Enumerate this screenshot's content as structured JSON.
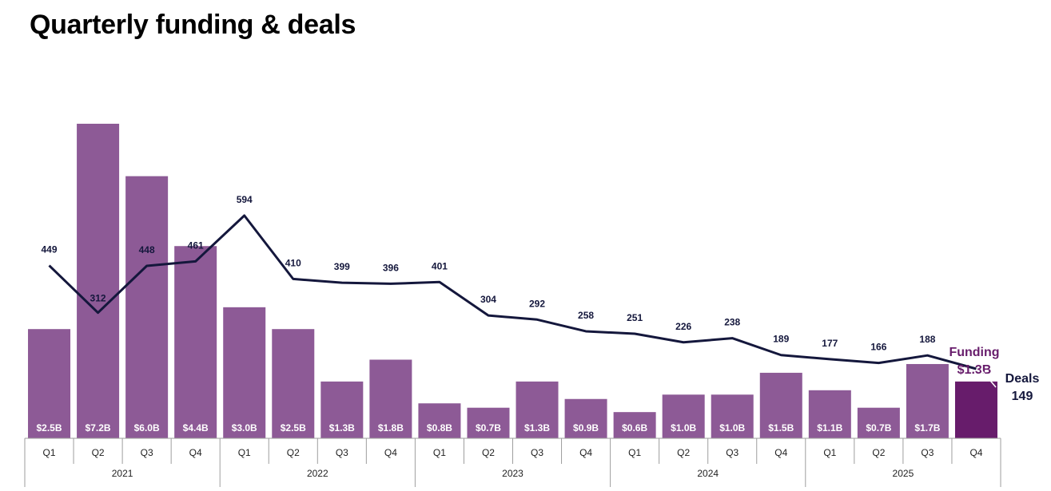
{
  "title": "Quarterly funding & deals",
  "colors": {
    "bar": "#8d5a96",
    "bar_highlight": "#671c6b",
    "line": "#14173c",
    "axis": "#9e9e9e",
    "funding_text": "#671c6b",
    "deals_text": "#14173c"
  },
  "chart_data": {
    "type": "bar",
    "title": "Quarterly funding & deals",
    "quarters": [
      "Q1",
      "Q2",
      "Q3",
      "Q4",
      "Q1",
      "Q2",
      "Q3",
      "Q4",
      "Q1",
      "Q2",
      "Q3",
      "Q4",
      "Q1",
      "Q2",
      "Q3",
      "Q4",
      "Q1",
      "Q2",
      "Q3",
      "Q4"
    ],
    "years": [
      "2021",
      "2022",
      "2023",
      "2024",
      "2025"
    ],
    "series": [
      {
        "name": "Funding",
        "type": "bar",
        "unit": "$B",
        "values": [
          2.5,
          7.2,
          6.0,
          4.4,
          3.0,
          2.5,
          1.3,
          1.8,
          0.8,
          0.7,
          1.3,
          0.9,
          0.6,
          1.0,
          1.0,
          1.5,
          1.1,
          0.7,
          1.7,
          1.3
        ],
        "labels": [
          "$2.5B",
          "$7.2B",
          "$6.0B",
          "$4.4B",
          "$3.0B",
          "$2.5B",
          "$1.3B",
          "$1.8B",
          "$0.8B",
          "$0.7B",
          "$1.3B",
          "$0.9B",
          "$0.6B",
          "$1.0B",
          "$1.0B",
          "$1.5B",
          "$1.1B",
          "$0.7B",
          "$1.7B",
          ""
        ]
      },
      {
        "name": "Deals",
        "type": "line",
        "values": [
          449,
          312,
          448,
          461,
          594,
          410,
          399,
          396,
          401,
          304,
          292,
          258,
          251,
          226,
          238,
          189,
          177,
          166,
          188,
          149
        ],
        "labels": [
          "449",
          "312",
          "448",
          "461",
          "594",
          "410",
          "399",
          "396",
          "401",
          "304",
          "292",
          "258",
          "251",
          "226",
          "238",
          "189",
          "177",
          "166",
          "188",
          ""
        ]
      }
    ],
    "callouts": {
      "funding_name": "Funding",
      "funding_value": "$1.3B",
      "deals_name": "Deals",
      "deals_value": "149"
    },
    "ylim_funding": [
      0,
      7.2
    ],
    "ylim_deals": [
      0,
      640
    ],
    "grid": false,
    "legend": "none"
  }
}
